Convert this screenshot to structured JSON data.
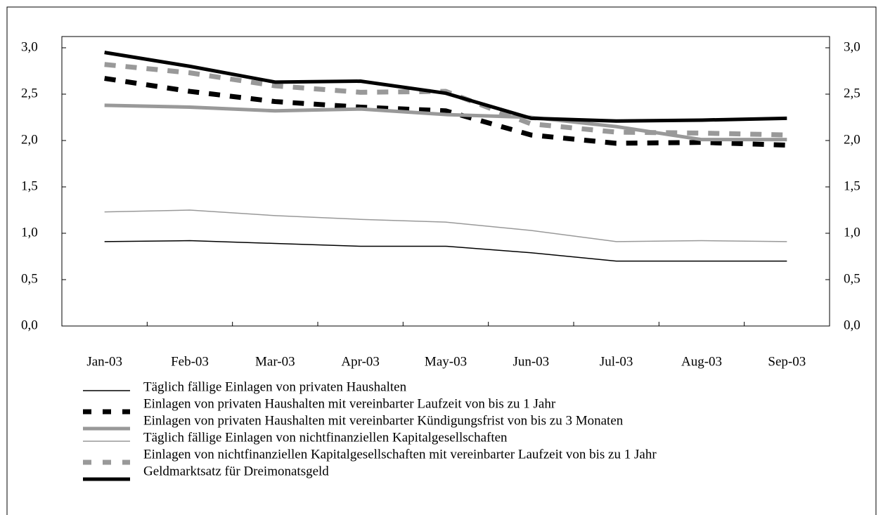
{
  "chart_data": {
    "type": "line",
    "categories": [
      "Jan-03",
      "Feb-03",
      "Mar-03",
      "Apr-03",
      "May-03",
      "Jun-03",
      "Jul-03",
      "Aug-03",
      "Sep-03"
    ],
    "series": [
      {
        "name": "Täglich fällige Einlagen von privaten Haushalten",
        "color": "#000000",
        "width": 1.5,
        "dash": false,
        "values": [
          0.91,
          0.92,
          0.89,
          0.86,
          0.86,
          0.79,
          0.7,
          0.7,
          0.7
        ]
      },
      {
        "name": "Einlagen von privaten Haushalten mit vereinbarter Laufzeit von bis zu 1 Jahr",
        "color": "#000000",
        "width": 7,
        "dash": true,
        "values": [
          2.67,
          2.53,
          2.42,
          2.36,
          2.32,
          2.06,
          1.97,
          1.98,
          1.95
        ]
      },
      {
        "name": "Einlagen von privaten Haushalten mit vereinbarter Kündigungsfrist von bis zu 3 Monaten",
        "color": "#999999",
        "width": 5,
        "dash": false,
        "values": [
          2.38,
          2.36,
          2.32,
          2.34,
          2.28,
          2.25,
          2.15,
          2.01,
          2.01
        ]
      },
      {
        "name": "Täglich fällige Einlagen von nichtfinanziellen Kapitalgesellschaften",
        "color": "#999999",
        "width": 1.5,
        "dash": false,
        "values": [
          1.23,
          1.25,
          1.19,
          1.15,
          1.12,
          1.03,
          0.91,
          0.92,
          0.91
        ]
      },
      {
        "name": "Einlagen von nichtfinanziellen Kapitalgesellschaften mit vereinbarter Laufzeit von bis zu 1 Jahr",
        "color": "#999999",
        "width": 7,
        "dash": true,
        "values": [
          2.82,
          2.73,
          2.59,
          2.52,
          2.53,
          2.18,
          2.09,
          2.08,
          2.06
        ]
      },
      {
        "name": "Geldmarktsatz für Dreimonatsgeld",
        "color": "#000000",
        "width": 5,
        "dash": false,
        "values": [
          2.95,
          2.8,
          2.63,
          2.64,
          2.51,
          2.24,
          2.21,
          2.22,
          2.24
        ]
      }
    ],
    "ylim": [
      0,
      3
    ],
    "yticks": [
      {
        "value": 0,
        "label": "0,0"
      },
      {
        "value": 0.5,
        "label": "0,5"
      },
      {
        "value": 1,
        "label": "1,0"
      },
      {
        "value": 1.5,
        "label": "1,5"
      },
      {
        "value": 2,
        "label": "2,0"
      },
      {
        "value": 2.5,
        "label": "2,5"
      },
      {
        "value": 3,
        "label": "3,0"
      }
    ],
    "y2lim": [
      0,
      3
    ],
    "y2ticks": [
      {
        "value": 0,
        "label": "0,0"
      },
      {
        "value": 0.5,
        "label": "0,5"
      },
      {
        "value": 1,
        "label": "1,0"
      },
      {
        "value": 1.5,
        "label": "1,5"
      },
      {
        "value": 2,
        "label": "2,0"
      },
      {
        "value": 2.5,
        "label": "2,5"
      },
      {
        "value": 3,
        "label": "3,0"
      }
    ]
  }
}
